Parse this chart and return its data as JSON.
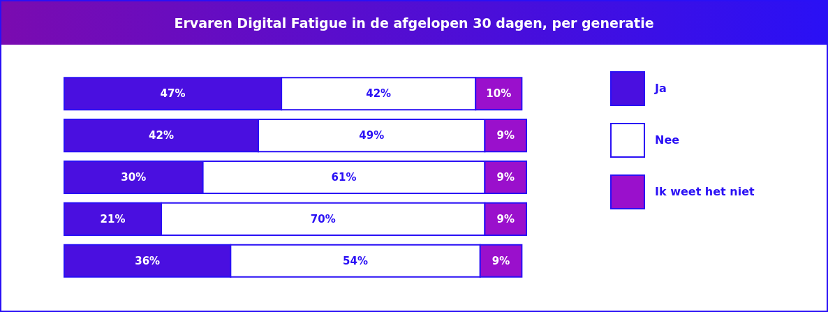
{
  "chart_data": {
    "type": "bar",
    "title": "Ervaren Digital Fatigue in de afgelopen 30 dagen, per generatie",
    "orientation": "horizontal",
    "stacked": true,
    "categories": [
      null,
      null,
      null,
      null,
      null
    ],
    "legend": "right",
    "series": [
      {
        "name": "Ja",
        "color": "#4a0fe0",
        "values": [
          47,
          42,
          30,
          21,
          36
        ],
        "value_labels": [
          "47%",
          "42%",
          "30%",
          "21%",
          "36%"
        ]
      },
      {
        "name": "Nee",
        "color": "#ffffff",
        "values": [
          42,
          49,
          61,
          70,
          54
        ],
        "value_labels": [
          "42%",
          "49%",
          "61%",
          "70%",
          "54%"
        ]
      },
      {
        "name": "Ik weet het niet",
        "color": "#9a10cc",
        "values": [
          10,
          9,
          9,
          9,
          9
        ],
        "value_labels": [
          "10%",
          "9%",
          "9%",
          "9%",
          "9%"
        ]
      }
    ]
  }
}
